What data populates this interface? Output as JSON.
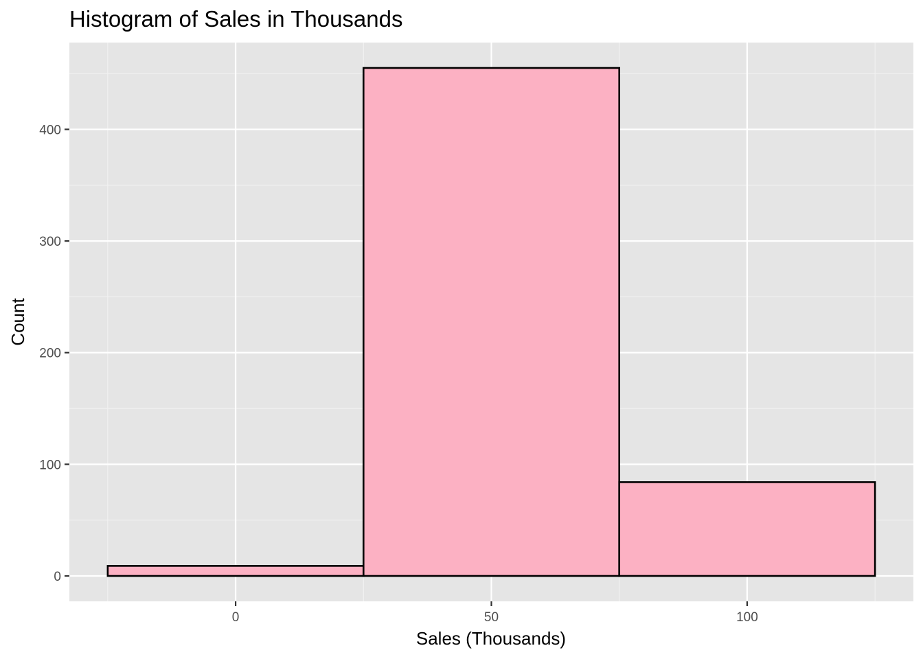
{
  "chart_data": {
    "type": "bar",
    "title": "Histogram of Sales in Thousands",
    "xlabel": "Sales (Thousands)",
    "ylabel": "Count",
    "bins": [
      {
        "x0": -25,
        "x1": 25,
        "count": 9
      },
      {
        "x0": 25,
        "x1": 75,
        "count": 455
      },
      {
        "x0": 75,
        "x1": 125,
        "count": 84
      }
    ],
    "xlim": [
      -32.5,
      132.5
    ],
    "ylim": [
      -22.75,
      477.75
    ],
    "x_ticks": [
      0,
      50,
      100
    ],
    "x_tick_labels": [
      "0",
      "50",
      "100"
    ],
    "y_ticks": [
      0,
      100,
      200,
      300,
      400
    ],
    "y_tick_labels": [
      "0",
      "100",
      "200",
      "300",
      "400"
    ],
    "grid": true,
    "legend": "none",
    "colors": {
      "panel_background": "#e5e5e5",
      "grid_major": "#ffffff",
      "grid_minor": "#f2f2f2",
      "bar_fill": "#fcb1c3",
      "bar_outline": "#000000",
      "tick_text": "#4d4d4d",
      "tick_mark": "#333333"
    }
  }
}
